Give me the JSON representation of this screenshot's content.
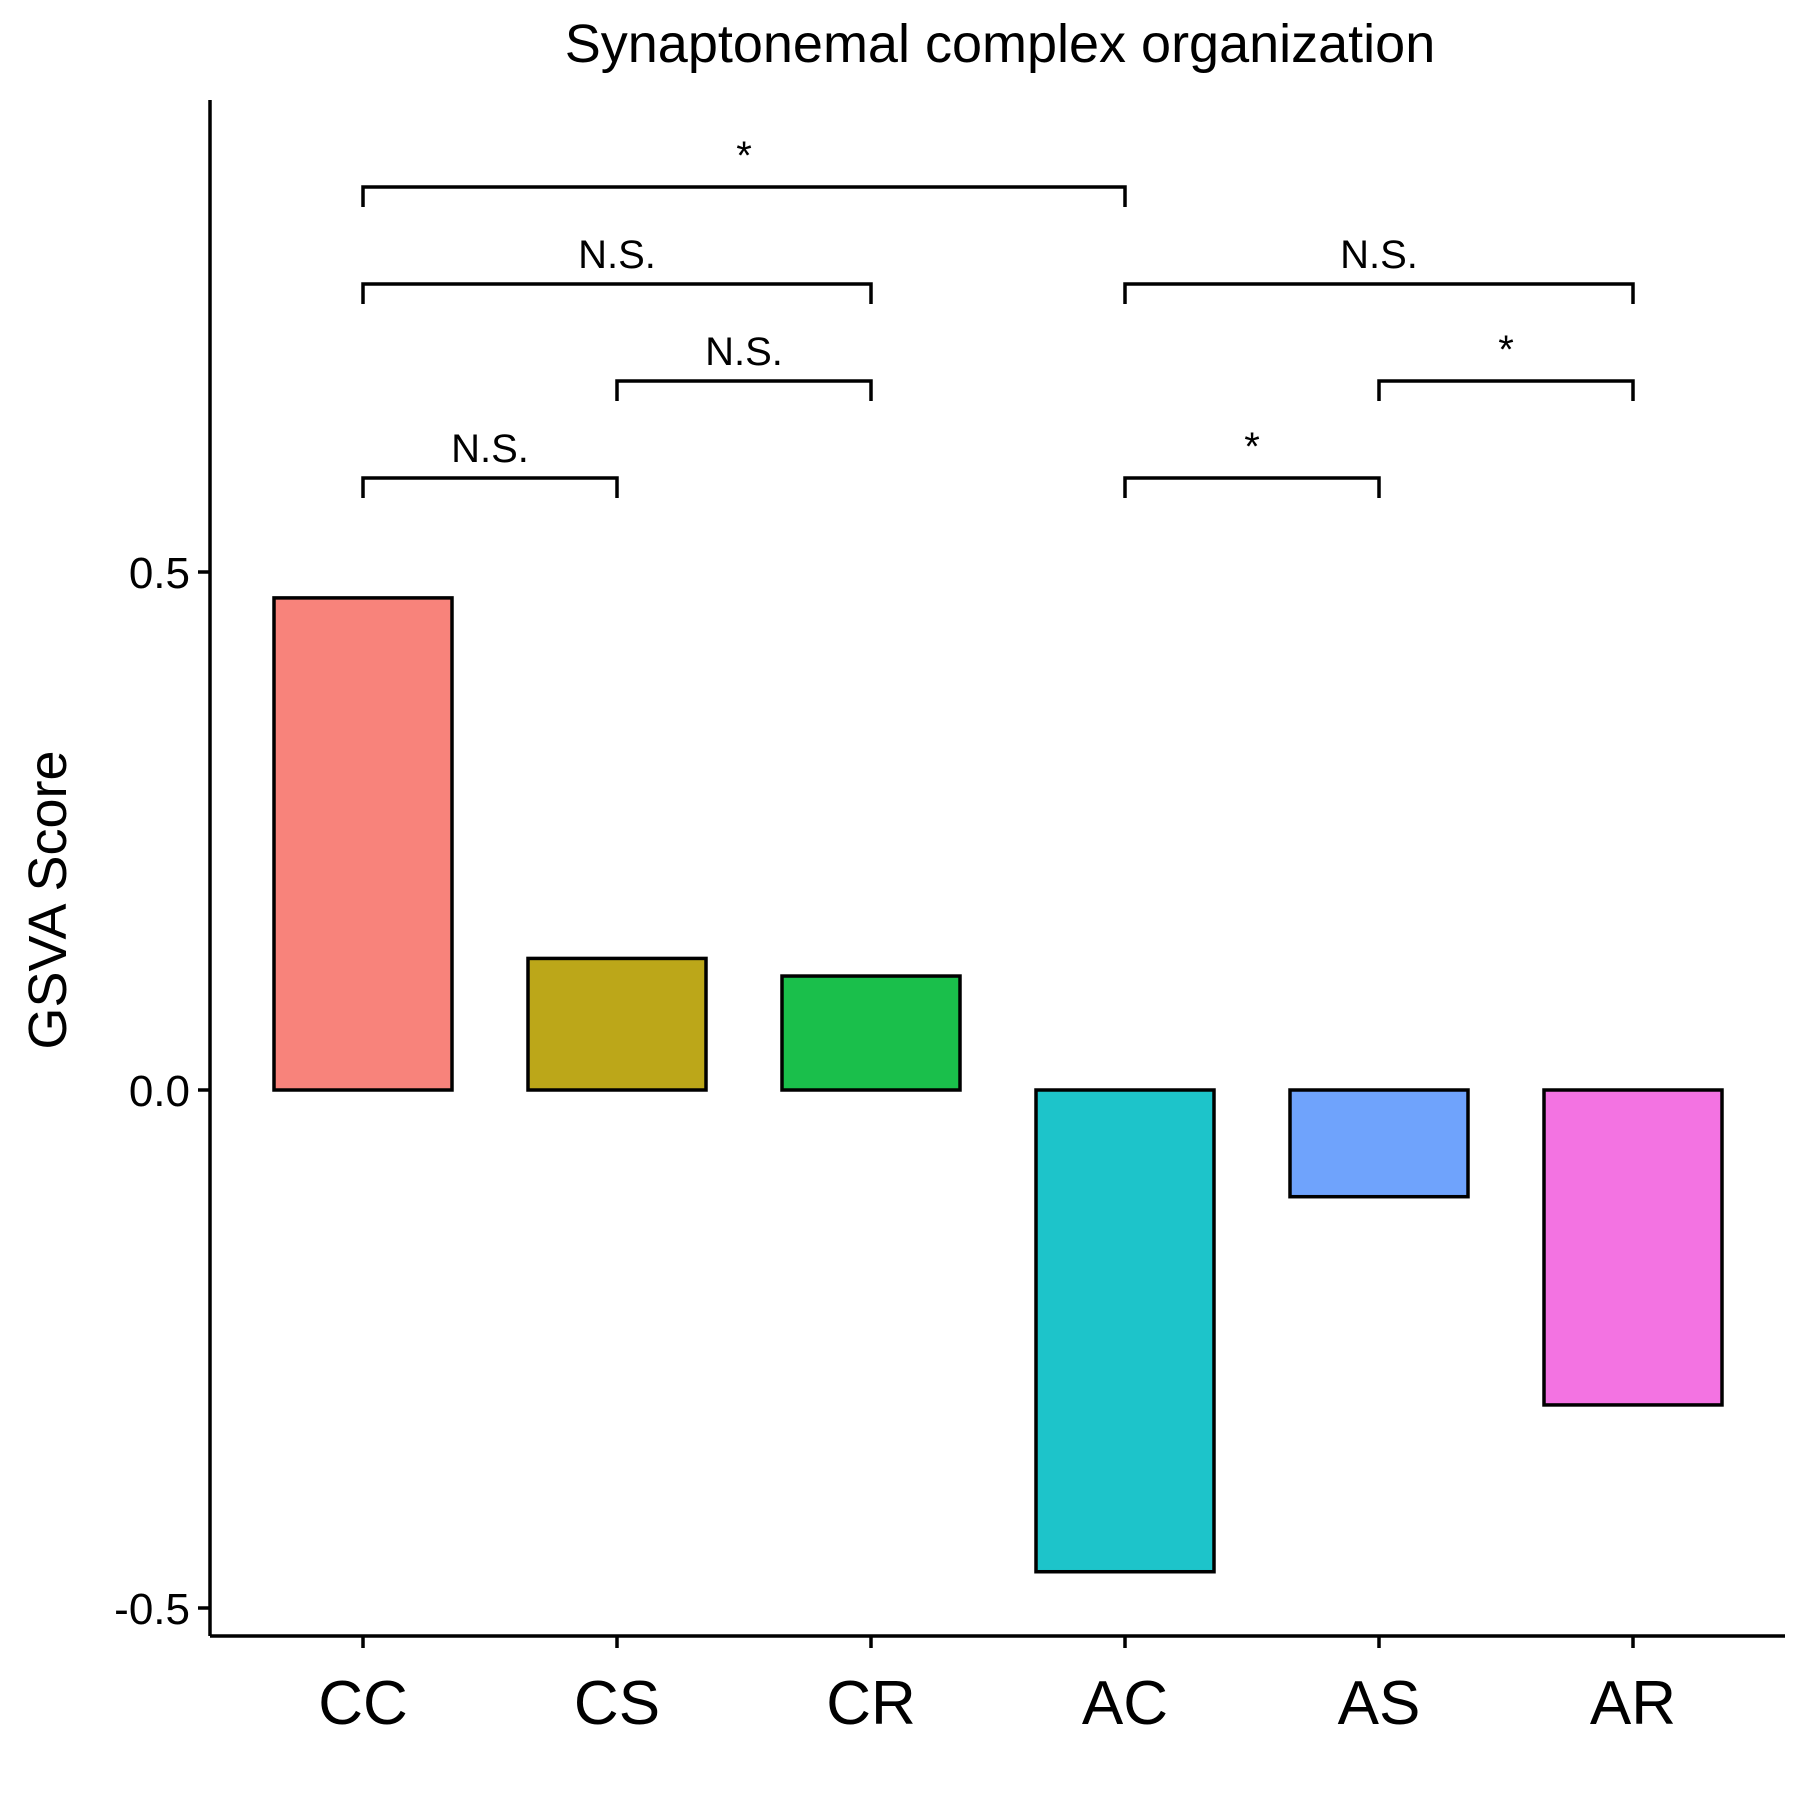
{
  "chart_data": {
    "type": "bar",
    "title": "Synaptonemal complex organization",
    "xlabel": "",
    "ylabel": "GSVA Score",
    "categories": [
      "CC",
      "CS",
      "CR",
      "AC",
      "AS",
      "AR"
    ],
    "values": [
      0.475,
      0.127,
      0.11,
      -0.465,
      -0.103,
      -0.304
    ],
    "colors": [
      "#F8837B",
      "#BCA719",
      "#1ABF4B",
      "#1DC4CA",
      "#6FA3FC",
      "#F373E2"
    ],
    "ylim": [
      -0.53,
      0.96
    ],
    "yticks": [
      -0.5,
      0.0,
      0.5
    ],
    "ytick_labels": [
      "-0.5",
      "0.0",
      "0.5"
    ],
    "grid": false,
    "legend": "none",
    "comparisons": [
      {
        "from": "CC",
        "to": "CS",
        "label": "N.S.",
        "level": 1
      },
      {
        "from": "CS",
        "to": "CR",
        "label": "N.S.",
        "level": 2
      },
      {
        "from": "CC",
        "to": "CR",
        "label": "N.S.",
        "level": 3
      },
      {
        "from": "CC",
        "to": "AC",
        "label": "*",
        "level": 4
      },
      {
        "from": "AC",
        "to": "AS",
        "label": "*",
        "level": 1
      },
      {
        "from": "AS",
        "to": "AR",
        "label": "*",
        "level": 2
      },
      {
        "from": "AC",
        "to": "AR",
        "label": "N.S.",
        "level": 3
      }
    ]
  }
}
